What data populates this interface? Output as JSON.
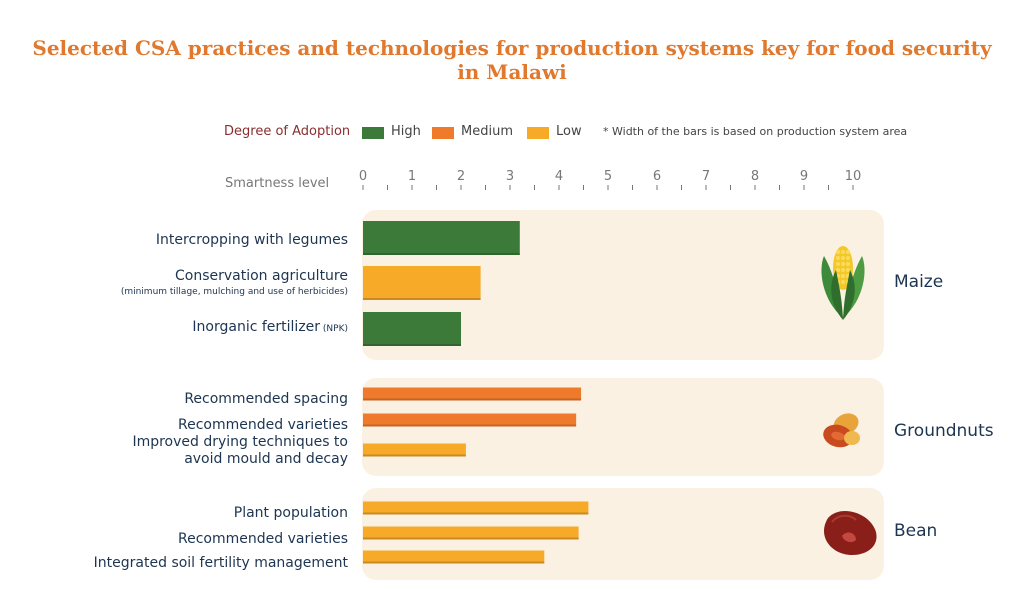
{
  "chart_data": {
    "type": "bar",
    "orientation": "horizontal",
    "title": "Selected CSA practices and technologies for production systems key for food security in Malawi",
    "xlabel": "Smartness level",
    "xlim": [
      0,
      10
    ],
    "xticks": [
      "0",
      "1",
      "2",
      "3",
      "4",
      "5",
      "6",
      "7",
      "8",
      "9",
      "10"
    ],
    "legend": {
      "title": "Degree of Adoption",
      "items": [
        {
          "label": "High",
          "color": "#3c7a39"
        },
        {
          "label": "Medium",
          "color": "#f07a2c"
        },
        {
          "label": "Low",
          "color": "#f7a928"
        }
      ],
      "note": "* Width of the bars is based on production system area",
      "placement": "top"
    },
    "groups": [
      {
        "name": "Maize",
        "icon": "maize-icon",
        "bars": [
          {
            "label": "Intercropping with legumes",
            "sublabel": "",
            "value": 3.2,
            "adoption": "High"
          },
          {
            "label": "Conservation agriculture",
            "sublabel": "(minimum tillage, mulching and use of herbicides)",
            "value": 2.4,
            "adoption": "Low"
          },
          {
            "label": "Inorganic fertilizer",
            "sublabel": "(NPK)",
            "value": 2.0,
            "adoption": "High"
          }
        ]
      },
      {
        "name": "Groundnuts",
        "icon": "groundnut-icon",
        "bars": [
          {
            "label": "Recommended spacing",
            "sublabel": "",
            "value": 4.45,
            "adoption": "Medium"
          },
          {
            "label": "Recommended varieties",
            "sublabel": "",
            "value": 4.35,
            "adoption": "Medium"
          },
          {
            "label": "Improved drying techniques to avoid mould and decay",
            "sublabel": "",
            "value": 2.1,
            "adoption": "Low"
          }
        ]
      },
      {
        "name": "Bean",
        "icon": "bean-icon",
        "bars": [
          {
            "label": "Plant population",
            "sublabel": "",
            "value": 4.6,
            "adoption": "Low"
          },
          {
            "label": "Recommended varieties",
            "sublabel": "",
            "value": 4.4,
            "adoption": "Low"
          },
          {
            "label": "Integrated soil fertility management",
            "sublabel": "",
            "value": 3.7,
            "adoption": "Low"
          }
        ]
      }
    ]
  }
}
